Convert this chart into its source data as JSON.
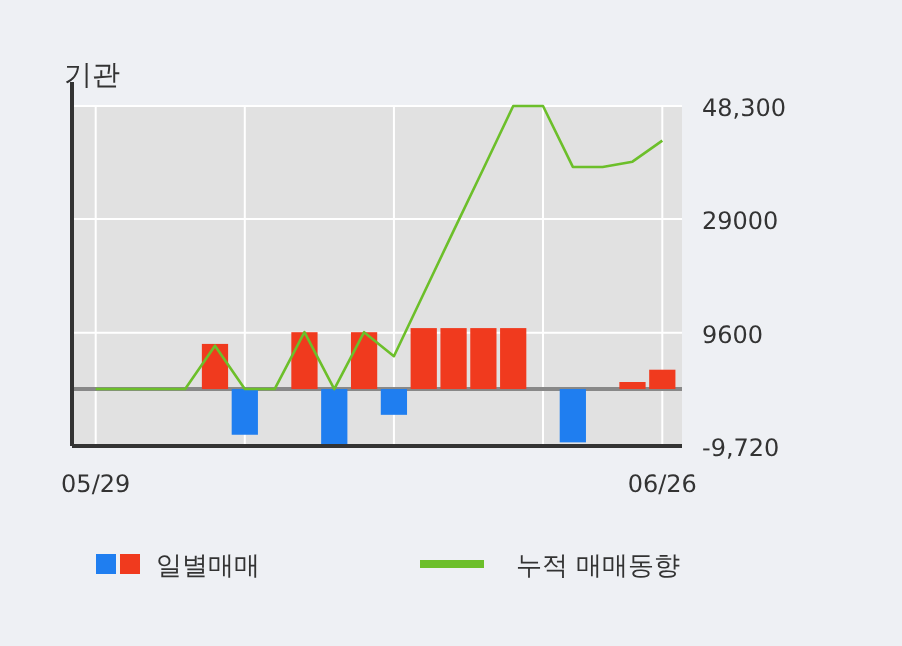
{
  "chart_data": {
    "type": "bar",
    "title": "기관",
    "categories": [
      "05/29",
      null,
      null,
      null,
      null,
      null,
      null,
      null,
      null,
      null,
      null,
      null,
      null,
      null,
      null,
      null,
      null,
      null,
      null,
      "06/26"
    ],
    "series": [
      {
        "name": "일별매매",
        "colors": [
          "#f03a1e",
          "#f03a1e",
          "#f03a1e",
          "#f03a1e",
          "#f03a1e",
          "#1f7ef0",
          "#f03a1e",
          "#f03a1e",
          "#1f7ef0",
          "#f03a1e",
          "#1f7ef0",
          "#f03a1e",
          "#f03a1e",
          "#f03a1e",
          "#f03a1e",
          "#f03a1e",
          "#1f7ef0",
          "#f03a1e",
          "#f03a1e",
          "#f03a1e"
        ],
        "values": [
          0,
          0,
          0,
          0,
          7700,
          -7800,
          0,
          9700,
          -9700,
          9700,
          -4400,
          10400,
          10400,
          10400,
          10400,
          0,
          -9100,
          0,
          1200,
          3300
        ]
      },
      {
        "type": "line",
        "name": "누적 매매동향",
        "color": "#6cbf2a",
        "values": [
          0,
          0,
          0,
          0,
          7400,
          0,
          0,
          9700,
          0,
          9700,
          5600,
          16300,
          27000,
          37600,
          48300,
          48300,
          37900,
          37900,
          38800,
          42400
        ]
      }
    ],
    "ylim": [
      -9720,
      48300
    ],
    "yticks": [
      {
        "value": -9720,
        "label": "-9,720"
      },
      9600,
      29000,
      {
        "value": 48300,
        "label": "48,300"
      }
    ],
    "grid": true,
    "legend": "bottom"
  }
}
